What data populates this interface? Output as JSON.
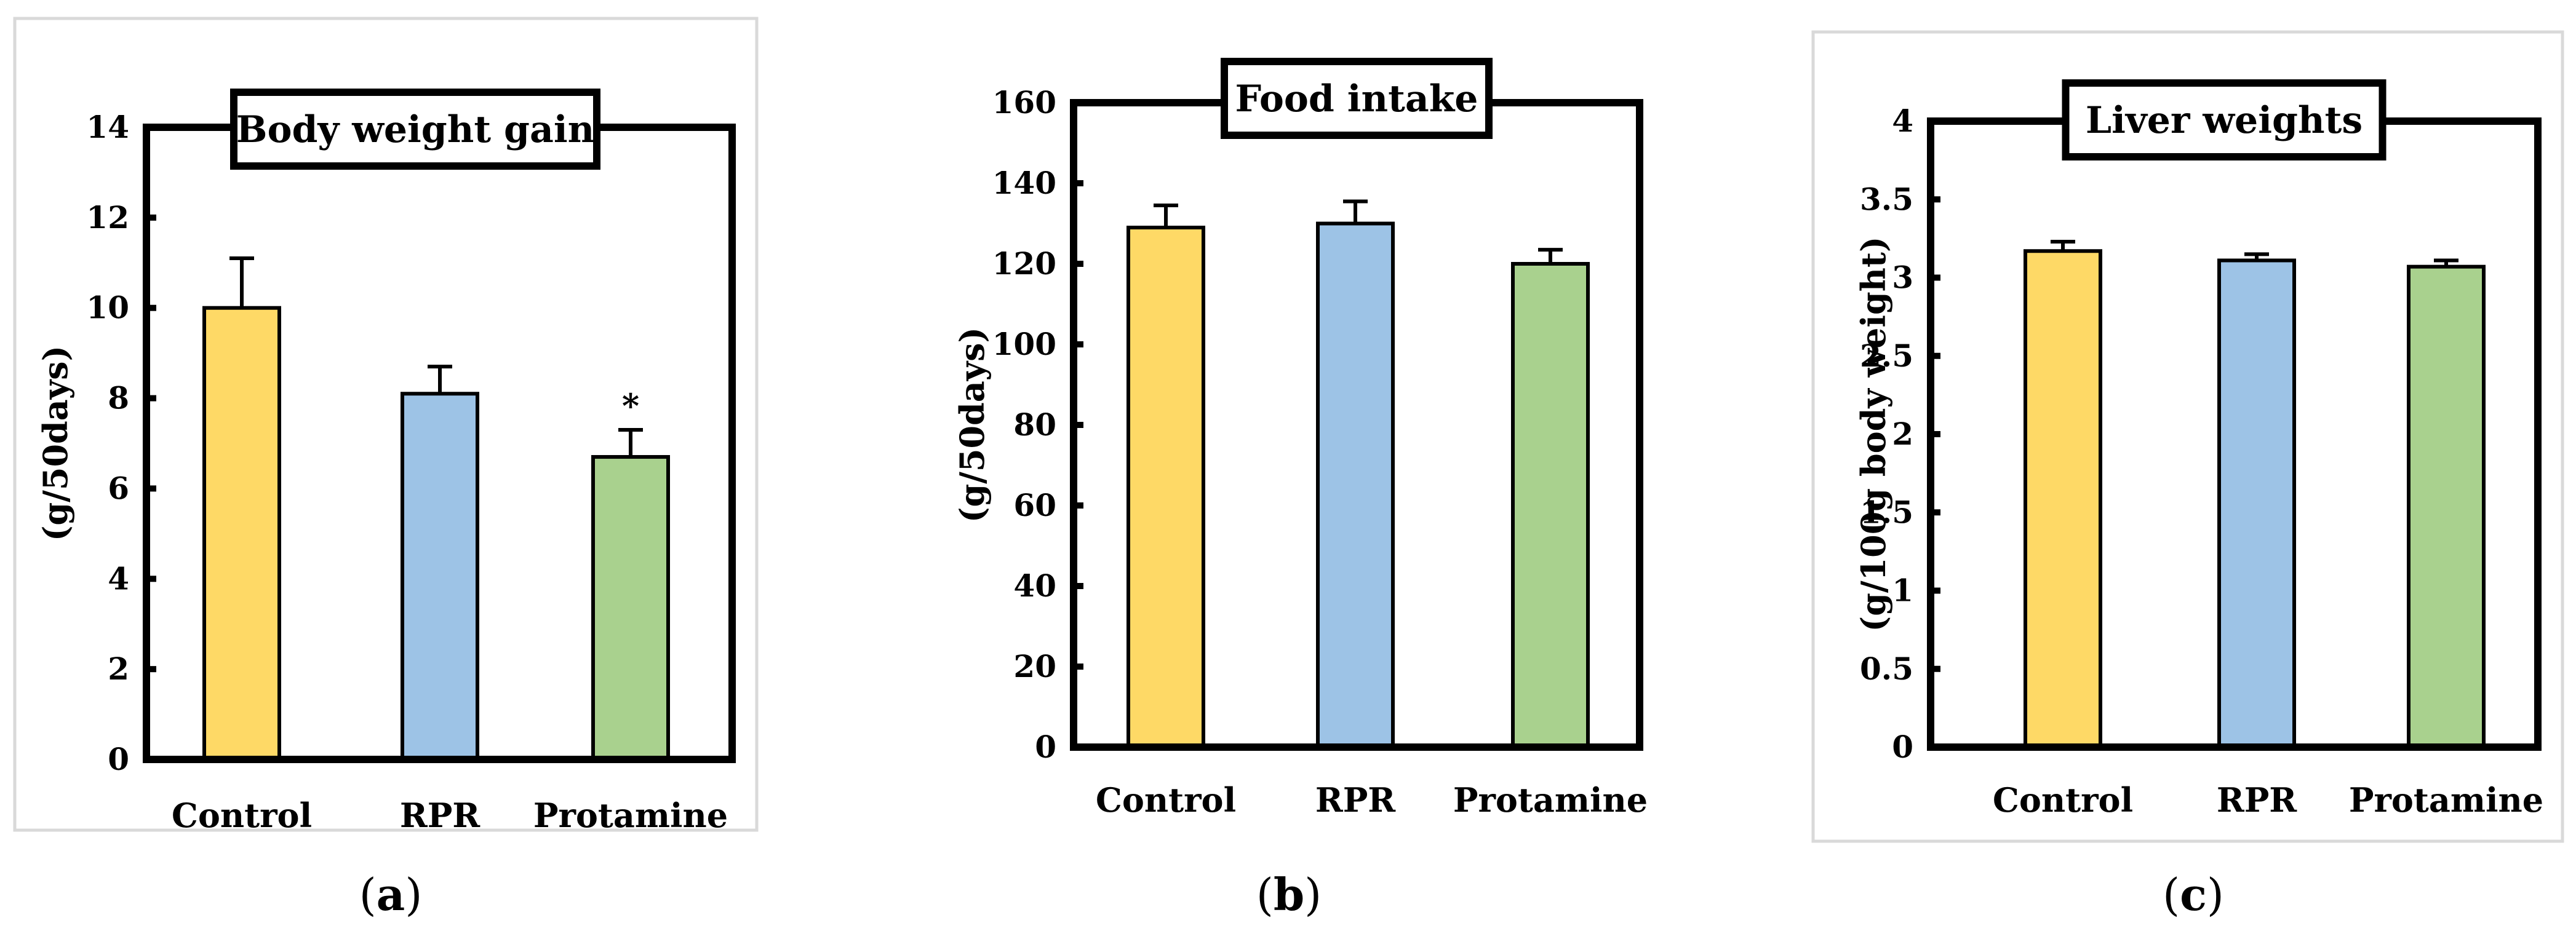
{
  "chart_data": [
    {
      "type": "bar",
      "panel_label": "a",
      "title": "Body weight gain",
      "xlabel": "",
      "ylabel": "(g/50days)",
      "categories": [
        "Control",
        "RPR",
        "Protamine"
      ],
      "values": [
        10.0,
        8.1,
        6.7
      ],
      "errors": [
        1.1,
        0.6,
        0.6
      ],
      "annotations": [
        "",
        "",
        "*"
      ],
      "ylim": [
        0,
        14
      ],
      "yticks": [
        0,
        2,
        4,
        6,
        8,
        10,
        12,
        14
      ],
      "ytick_labels": [
        "0",
        "2",
        "4",
        "6",
        "8",
        "10",
        "12",
        "14"
      ],
      "bar_colors": [
        "#FED966",
        "#9DC3E6",
        "#A9D18E"
      ],
      "outer_frame": true
    },
    {
      "type": "bar",
      "panel_label": "b",
      "title": "Food intake",
      "xlabel": "",
      "ylabel": "(g/50days)",
      "categories": [
        "Control",
        "RPR",
        "Protamine"
      ],
      "values": [
        129,
        130,
        120
      ],
      "errors": [
        5.5,
        5.5,
        3.5
      ],
      "annotations": [
        "",
        "",
        ""
      ],
      "ylim": [
        0,
        160
      ],
      "yticks": [
        0,
        20,
        40,
        60,
        80,
        100,
        120,
        140,
        160
      ],
      "ytick_labels": [
        "0",
        "20",
        "40",
        "60",
        "80",
        "100",
        "120",
        "140",
        "160"
      ],
      "bar_colors": [
        "#FED966",
        "#9DC3E6",
        "#A9D18E"
      ],
      "outer_frame": false
    },
    {
      "type": "bar",
      "panel_label": "c",
      "title": "Liver weights",
      "xlabel": "",
      "ylabel": "(g/100g body weight)",
      "categories": [
        "Control",
        "RPR",
        "Protamine"
      ],
      "values": [
        3.17,
        3.11,
        3.07
      ],
      "errors": [
        0.06,
        0.04,
        0.04
      ],
      "annotations": [
        "",
        "",
        ""
      ],
      "ylim": [
        0,
        4
      ],
      "yticks": [
        0,
        0.5,
        1,
        1.5,
        2,
        2.5,
        3,
        3.5,
        4
      ],
      "ytick_labels": [
        "0",
        "0.5",
        "1",
        "1.5",
        "2",
        "2.5",
        "3",
        "3.5",
        "4"
      ],
      "bar_colors": [
        "#FED966",
        "#9DC3E6",
        "#A9D18E"
      ],
      "outer_frame": true
    }
  ]
}
